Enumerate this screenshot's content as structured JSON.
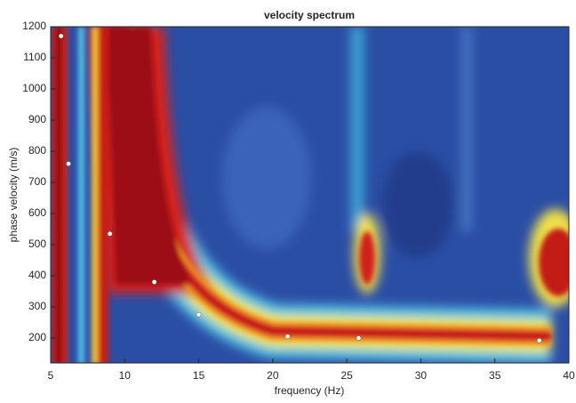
{
  "chart_data": {
    "type": "scatter",
    "title": "velocity spectrum",
    "xlabel": "frequency (Hz)",
    "ylabel": "phase velocity (m/s)",
    "x": [
      5.7,
      6.2,
      9,
      12,
      15,
      21,
      25.8,
      38
    ],
    "values": [
      1170,
      760,
      535,
      380,
      275,
      205,
      200,
      192
    ],
    "color": "#ffffff",
    "xlim": [
      5,
      40
    ],
    "xticks": [
      5,
      10,
      15,
      20,
      25,
      30,
      35,
      40
    ],
    "ylim": [
      120,
      1200
    ],
    "yticks": [
      200,
      300,
      400,
      500,
      600,
      700,
      800,
      900,
      1000,
      1100,
      1200
    ]
  }
}
